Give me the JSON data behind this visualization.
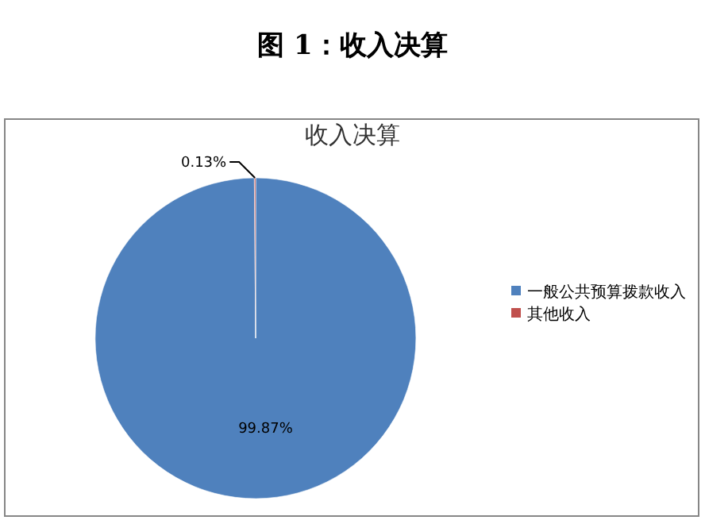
{
  "chart_data": {
    "type": "pie",
    "title": "图 1：收入决算",
    "subtitle": "收入决算",
    "categories": [
      "一般公共预算拨款收入",
      "其他收入"
    ],
    "values": [
      99.87,
      0.13
    ],
    "colors": [
      "#4f81bd",
      "#c0504d"
    ],
    "value_labels": [
      "99.87%",
      "0.13%"
    ],
    "legend": "right"
  }
}
